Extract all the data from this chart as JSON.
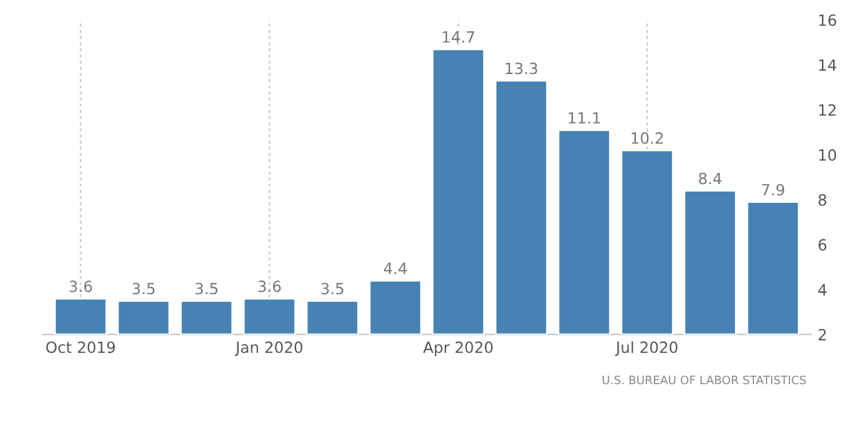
{
  "chart_data": {
    "type": "bar",
    "categories": [
      "Oct 2019",
      null,
      null,
      "Jan 2020",
      null,
      null,
      "Apr 2020",
      null,
      null,
      "Jul 2020",
      null,
      null
    ],
    "values": [
      3.6,
      3.5,
      3.5,
      3.6,
      3.5,
      4.4,
      14.7,
      13.3,
      11.1,
      10.2,
      8.4,
      7.9
    ],
    "color": "#4682b4",
    "ylim": [
      2,
      16
    ],
    "yticks": [
      2,
      4,
      6,
      8,
      10,
      12,
      14,
      16
    ],
    "grid": "x",
    "data_labels": true,
    "annotations": [
      "U.S. BUREAU OF LABOR STATISTICS"
    ]
  }
}
